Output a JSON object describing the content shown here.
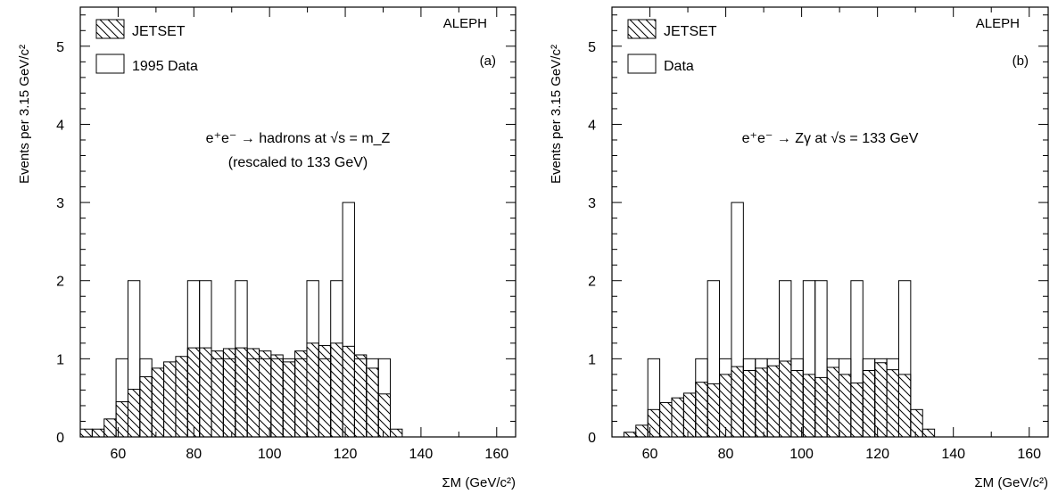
{
  "chart_data": [
    {
      "type": "bar",
      "title": "",
      "xlabel": "ΣM (GeV/c²)",
      "ylabel": "Events per 3.15 GeV/c²",
      "xlim": [
        50,
        165
      ],
      "ylim": [
        0,
        5.5
      ],
      "x_ticks": [
        60,
        80,
        100,
        120,
        140,
        160
      ],
      "y_ticks": [
        0,
        1,
        2,
        3,
        4,
        5
      ],
      "experiment_label": "ALEPH",
      "panel_label": "(a)",
      "annotation": [
        "e⁺e⁻ → hadrons at √s = m_Z",
        "(rescaled to 133 GeV)"
      ],
      "legend": {
        "position": "top-left",
        "entries": [
          "JETSET",
          "1995 Data"
        ]
      },
      "bin_width": 3.15,
      "series": [
        {
          "name": "JETSET",
          "style": "hatched",
          "bins": [
            [
              50.0,
              0.1
            ],
            [
              53.15,
              0.1
            ],
            [
              56.3,
              0.23
            ],
            [
              59.45,
              0.45
            ],
            [
              62.6,
              0.61
            ],
            [
              65.75,
              0.77
            ],
            [
              68.9,
              0.88
            ],
            [
              72.05,
              0.96
            ],
            [
              75.2,
              1.03
            ],
            [
              78.35,
              1.14
            ],
            [
              81.5,
              1.14
            ],
            [
              84.65,
              1.1
            ],
            [
              87.8,
              1.13
            ],
            [
              90.95,
              1.14
            ],
            [
              94.1,
              1.13
            ],
            [
              97.25,
              1.1
            ],
            [
              100.4,
              1.05
            ],
            [
              103.55,
              0.96
            ],
            [
              106.7,
              1.1
            ],
            [
              109.85,
              1.2
            ],
            [
              113.0,
              1.17
            ],
            [
              116.15,
              1.2
            ],
            [
              119.3,
              1.16
            ],
            [
              122.45,
              1.05
            ],
            [
              125.6,
              0.88
            ],
            [
              128.75,
              0.55
            ],
            [
              131.9,
              0.1
            ]
          ]
        },
        {
          "name": "1995 Data",
          "style": "outline",
          "bins": [
            [
              59.45,
              1
            ],
            [
              62.6,
              2
            ],
            [
              65.75,
              1
            ],
            [
              78.35,
              2
            ],
            [
              81.5,
              2
            ],
            [
              84.65,
              1
            ],
            [
              87.8,
              1
            ],
            [
              90.95,
              2
            ],
            [
              94.1,
              1
            ],
            [
              97.25,
              1
            ],
            [
              100.4,
              1
            ],
            [
              103.55,
              1
            ],
            [
              106.7,
              1
            ],
            [
              109.85,
              2
            ],
            [
              113.0,
              1
            ],
            [
              116.15,
              2
            ],
            [
              119.3,
              3
            ],
            [
              122.45,
              1
            ],
            [
              125.6,
              1
            ],
            [
              128.75,
              1
            ]
          ]
        }
      ]
    },
    {
      "type": "bar",
      "title": "",
      "xlabel": "ΣM (GeV/c²)",
      "ylabel": "Events per 3.15 GeV/c²",
      "xlim": [
        50,
        165
      ],
      "ylim": [
        0,
        5.5
      ],
      "x_ticks": [
        60,
        80,
        100,
        120,
        140,
        160
      ],
      "y_ticks": [
        0,
        1,
        2,
        3,
        4,
        5
      ],
      "experiment_label": "ALEPH",
      "panel_label": "(b)",
      "annotation": [
        "e⁺e⁻ → Zγ at √s = 133 GeV"
      ],
      "legend": {
        "position": "top-left",
        "entries": [
          "JETSET",
          "Data"
        ]
      },
      "bin_width": 3.15,
      "series": [
        {
          "name": "JETSET",
          "style": "hatched",
          "bins": [
            [
              53.15,
              0.06
            ],
            [
              56.3,
              0.15
            ],
            [
              59.45,
              0.35
            ],
            [
              62.6,
              0.44
            ],
            [
              65.75,
              0.5
            ],
            [
              68.9,
              0.56
            ],
            [
              72.05,
              0.7
            ],
            [
              75.2,
              0.68
            ],
            [
              78.35,
              0.8
            ],
            [
              81.5,
              0.9
            ],
            [
              84.65,
              0.85
            ],
            [
              87.8,
              0.88
            ],
            [
              90.95,
              0.91
            ],
            [
              94.1,
              0.97
            ],
            [
              97.25,
              0.85
            ],
            [
              100.4,
              0.8
            ],
            [
              103.55,
              0.76
            ],
            [
              106.7,
              0.89
            ],
            [
              109.85,
              0.8
            ],
            [
              113.0,
              0.69
            ],
            [
              116.15,
              0.85
            ],
            [
              119.3,
              0.95
            ],
            [
              122.45,
              0.86
            ],
            [
              125.6,
              0.8
            ],
            [
              128.75,
              0.35
            ],
            [
              131.9,
              0.1
            ]
          ]
        },
        {
          "name": "Data",
          "style": "outline",
          "bins": [
            [
              59.45,
              1
            ],
            [
              72.05,
              1
            ],
            [
              75.2,
              2
            ],
            [
              78.35,
              1
            ],
            [
              81.5,
              3
            ],
            [
              84.65,
              1
            ],
            [
              87.8,
              1
            ],
            [
              90.95,
              1
            ],
            [
              94.1,
              2
            ],
            [
              97.25,
              1
            ],
            [
              100.4,
              2
            ],
            [
              103.55,
              2
            ],
            [
              106.7,
              1
            ],
            [
              109.85,
              1
            ],
            [
              113.0,
              2
            ],
            [
              116.15,
              1
            ],
            [
              119.3,
              1
            ],
            [
              122.45,
              1
            ],
            [
              125.6,
              2
            ]
          ]
        }
      ]
    }
  ]
}
